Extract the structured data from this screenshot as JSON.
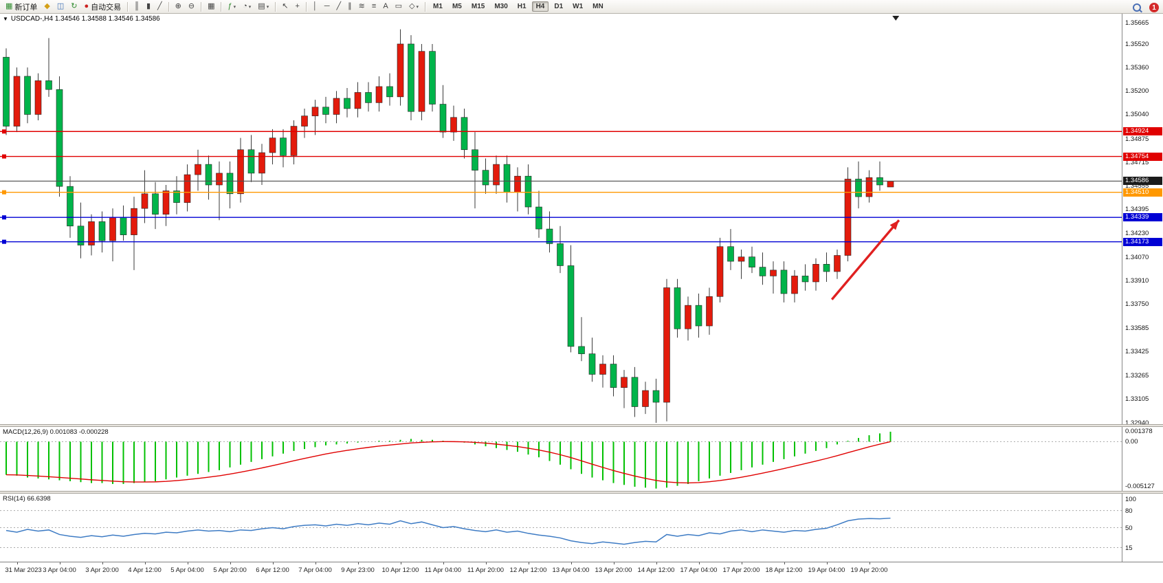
{
  "icons": {
    "caret_down": "▼",
    "dropdown_caret": "▾"
  },
  "toolbar": {
    "new_order_label": "新订单",
    "auto_trading_label": "自动交易",
    "items": [
      {
        "name": "new-order-button",
        "glyph": "▦",
        "color": "#2e8b2e",
        "label": "新订单"
      },
      {
        "name": "mql5-market-button",
        "glyph": "◆",
        "color": "#d4a017"
      },
      {
        "name": "market-watch-button",
        "glyph": "◫",
        "color": "#3a6db5"
      },
      {
        "name": "refresh-button",
        "glyph": "↻",
        "color": "#2e8b2e"
      },
      {
        "name": "auto-trading-button",
        "glyph": "●",
        "color": "#cc2222",
        "label": "自动交易"
      },
      {
        "sep": true
      },
      {
        "name": "bar-chart-button",
        "glyph": "║"
      },
      {
        "name": "candlestick-chart-button",
        "glyph": "▮"
      },
      {
        "name": "line-chart-button",
        "glyph": "╱"
      },
      {
        "sep": true
      },
      {
        "name": "zoom-in-button",
        "glyph": "⊕"
      },
      {
        "name": "zoom-out-button",
        "glyph": "⊖"
      },
      {
        "sep": true
      },
      {
        "name": "tile-windows-button",
        "glyph": "▦"
      },
      {
        "sep": true
      },
      {
        "name": "indicators-button",
        "glyph": "ƒ",
        "color": "#2e8b2e",
        "caret": true
      },
      {
        "name": "periods-button",
        "glyph": "◔",
        "caret": true
      },
      {
        "name": "templates-button",
        "glyph": "▤",
        "caret": true
      },
      {
        "sep": true
      },
      {
        "name": "cursor-button",
        "glyph": "↖"
      },
      {
        "name": "crosshair-button",
        "glyph": "+"
      },
      {
        "sep": true
      },
      {
        "name": "vertical-line-button",
        "glyph": "│"
      },
      {
        "name": "horizontal-line-button",
        "glyph": "─"
      },
      {
        "name": "trendline-button",
        "glyph": "╱"
      },
      {
        "name": "equidistant-channel-button",
        "glyph": "∥"
      },
      {
        "name": "fibonacci-button",
        "glyph": "≋"
      },
      {
        "name": "grid-button",
        "glyph": "≡"
      },
      {
        "name": "text-button",
        "glyph": "A"
      },
      {
        "name": "text-label-button",
        "glyph": "▭"
      },
      {
        "name": "shapes-button",
        "glyph": "◇",
        "caret": true
      },
      {
        "sep": true
      }
    ],
    "timeframes": [
      "M1",
      "M5",
      "M15",
      "M30",
      "H1",
      "H4",
      "D1",
      "W1",
      "MN"
    ],
    "active_timeframe": "H4",
    "notification_count": "1"
  },
  "symbol_info": "USDCAD-,H4 1.34546 1.34588 1.34546 1.34586",
  "chart_data": {
    "type": "candlestick",
    "symbol": "USDCAD-",
    "timeframe": "H4",
    "ohlc_display": {
      "open": "1.34546",
      "high": "1.34588",
      "low": "1.34546",
      "close": "1.34586"
    },
    "y_axis": {
      "top": 1.35665,
      "bottom": 1.3294
    },
    "y_ticks": [
      "1.35665",
      "1.35520",
      "1.35360",
      "1.35200",
      "1.35040",
      "1.34875",
      "1.34715",
      "1.34555",
      "1.34395",
      "1.34230",
      "1.34070",
      "1.33910",
      "1.33750",
      "1.33585",
      "1.33425",
      "1.33265",
      "1.33105",
      "1.32940"
    ],
    "hlines": [
      {
        "price": 1.34924,
        "label": "1.34924",
        "color": "#e00000"
      },
      {
        "price": 1.34754,
        "label": "1.34754",
        "color": "#e00000"
      },
      {
        "price": 1.3451,
        "label": "1.34510",
        "color": "#ff9800"
      },
      {
        "price": 1.34339,
        "label": "1.34339",
        "color": "#0000d4"
      },
      {
        "price": 1.34173,
        "label": "1.34173",
        "color": "#0000d4"
      }
    ],
    "current": {
      "price": 1.34586,
      "label": "1.34586"
    },
    "candles": [
      [
        1.3543,
        1.3549,
        1.349,
        1.3496
      ],
      [
        1.3496,
        1.3536,
        1.3492,
        1.353
      ],
      [
        1.353,
        1.3536,
        1.3498,
        1.3504
      ],
      [
        1.3504,
        1.3532,
        1.35,
        1.3527
      ],
      [
        1.3527,
        1.3556,
        1.3516,
        1.3521
      ],
      [
        1.3521,
        1.353,
        1.3448,
        1.3455
      ],
      [
        1.3455,
        1.3462,
        1.342,
        1.3428
      ],
      [
        1.3428,
        1.3444,
        1.3406,
        1.3415
      ],
      [
        1.3415,
        1.3436,
        1.3408,
        1.3431
      ],
      [
        1.3431,
        1.3438,
        1.341,
        1.3418
      ],
      [
        1.3418,
        1.344,
        1.3404,
        1.3434
      ],
      [
        1.3434,
        1.3442,
        1.3418,
        1.3422
      ],
      [
        1.3422,
        1.3448,
        1.3398,
        1.344
      ],
      [
        1.344,
        1.3466,
        1.343,
        1.345
      ],
      [
        1.345,
        1.3458,
        1.3426,
        1.3436
      ],
      [
        1.3436,
        1.3456,
        1.3428,
        1.3452
      ],
      [
        1.3452,
        1.3462,
        1.3436,
        1.3444
      ],
      [
        1.3444,
        1.347,
        1.3438,
        1.3463
      ],
      [
        1.3463,
        1.348,
        1.3452,
        1.347
      ],
      [
        1.347,
        1.3476,
        1.3446,
        1.3456
      ],
      [
        1.3456,
        1.3472,
        1.3432,
        1.3464
      ],
      [
        1.3464,
        1.3472,
        1.344,
        1.345
      ],
      [
        1.345,
        1.3488,
        1.3444,
        1.348
      ],
      [
        1.348,
        1.349,
        1.3458,
        1.3464
      ],
      [
        1.3464,
        1.3484,
        1.3456,
        1.3478
      ],
      [
        1.3478,
        1.3494,
        1.347,
        1.3488
      ],
      [
        1.3488,
        1.3494,
        1.3468,
        1.3476
      ],
      [
        1.3476,
        1.35,
        1.347,
        1.3496
      ],
      [
        1.3496,
        1.3508,
        1.3488,
        1.3503
      ],
      [
        1.3503,
        1.3514,
        1.349,
        1.3509
      ],
      [
        1.3509,
        1.3516,
        1.3498,
        1.3504
      ],
      [
        1.3504,
        1.352,
        1.3498,
        1.3515
      ],
      [
        1.3515,
        1.3522,
        1.3502,
        1.3508
      ],
      [
        1.3508,
        1.3526,
        1.3502,
        1.3519
      ],
      [
        1.3519,
        1.3526,
        1.3506,
        1.3512
      ],
      [
        1.3512,
        1.353,
        1.3506,
        1.3523
      ],
      [
        1.3523,
        1.3532,
        1.351,
        1.3516
      ],
      [
        1.3516,
        1.3562,
        1.351,
        1.3552
      ],
      [
        1.3552,
        1.3558,
        1.35,
        1.3506
      ],
      [
        1.3506,
        1.3552,
        1.35,
        1.3547
      ],
      [
        1.3547,
        1.3552,
        1.3506,
        1.3511
      ],
      [
        1.3511,
        1.3524,
        1.3488,
        1.3492
      ],
      [
        1.3492,
        1.351,
        1.3486,
        1.3502
      ],
      [
        1.3502,
        1.3508,
        1.3474,
        1.348
      ],
      [
        1.348,
        1.3492,
        1.344,
        1.3466
      ],
      [
        1.3466,
        1.3474,
        1.345,
        1.3456
      ],
      [
        1.3456,
        1.3476,
        1.345,
        1.347
      ],
      [
        1.347,
        1.3476,
        1.3444,
        1.3451
      ],
      [
        1.3451,
        1.3468,
        1.3438,
        1.3462
      ],
      [
        1.3462,
        1.347,
        1.3436,
        1.3441
      ],
      [
        1.3441,
        1.3452,
        1.342,
        1.3426
      ],
      [
        1.3426,
        1.3438,
        1.341,
        1.3416
      ],
      [
        1.3416,
        1.3428,
        1.3396,
        1.3401
      ],
      [
        1.3401,
        1.3415,
        1.3342,
        1.3346
      ],
      [
        1.3346,
        1.3366,
        1.3336,
        1.3341
      ],
      [
        1.3341,
        1.3352,
        1.3322,
        1.3327
      ],
      [
        1.3327,
        1.334,
        1.3318,
        1.3334
      ],
      [
        1.3334,
        1.334,
        1.3312,
        1.3318
      ],
      [
        1.3318,
        1.333,
        1.3304,
        1.3325
      ],
      [
        1.3325,
        1.3332,
        1.3298,
        1.3305
      ],
      [
        1.3305,
        1.3322,
        1.33,
        1.3316
      ],
      [
        1.3316,
        1.3324,
        1.3294,
        1.3308
      ],
      [
        1.3308,
        1.3392,
        1.3295,
        1.3386
      ],
      [
        1.3386,
        1.3392,
        1.3352,
        1.3358
      ],
      [
        1.3358,
        1.338,
        1.335,
        1.3374
      ],
      [
        1.3374,
        1.3382,
        1.3352,
        1.336
      ],
      [
        1.336,
        1.3386,
        1.3354,
        1.338
      ],
      [
        1.338,
        1.342,
        1.3376,
        1.3414
      ],
      [
        1.3414,
        1.3426,
        1.3398,
        1.3404
      ],
      [
        1.3404,
        1.3412,
        1.3392,
        1.3407
      ],
      [
        1.3407,
        1.3414,
        1.3396,
        1.34
      ],
      [
        1.34,
        1.341,
        1.3388,
        1.3394
      ],
      [
        1.3394,
        1.3404,
        1.3382,
        1.3398
      ],
      [
        1.3398,
        1.3404,
        1.3376,
        1.3382
      ],
      [
        1.3382,
        1.3398,
        1.3376,
        1.3394
      ],
      [
        1.3394,
        1.3402,
        1.3384,
        1.339
      ],
      [
        1.339,
        1.3406,
        1.3384,
        1.3402
      ],
      [
        1.3402,
        1.341,
        1.339,
        1.3397
      ],
      [
        1.3397,
        1.3412,
        1.3392,
        1.3408
      ],
      [
        1.3408,
        1.3468,
        1.3404,
        1.346
      ],
      [
        1.346,
        1.3472,
        1.344,
        1.3448
      ],
      [
        1.3448,
        1.3466,
        1.3444,
        1.3461
      ],
      [
        1.3461,
        1.3472,
        1.3452,
        1.3456
      ],
      [
        1.34546,
        1.34588,
        1.34546,
        1.34586
      ]
    ],
    "x_labels": [
      {
        "index": 1,
        "text": "31 Mar 2023"
      },
      {
        "index": 5,
        "text": "3 Apr 04:00"
      },
      {
        "index": 9,
        "text": "3 Apr 20:00"
      },
      {
        "index": 13,
        "text": "4 Apr 12:00"
      },
      {
        "index": 17,
        "text": "5 Apr 04:00"
      },
      {
        "index": 21,
        "text": "5 Apr 20:00"
      },
      {
        "index": 25,
        "text": "6 Apr 12:00"
      },
      {
        "index": 29,
        "text": "7 Apr 04:00"
      },
      {
        "index": 33,
        "text": "9 Apr 23:00"
      },
      {
        "index": 37,
        "text": "10 Apr 12:00"
      },
      {
        "index": 41,
        "text": "11 Apr 04:00"
      },
      {
        "index": 45,
        "text": "11 Apr 20:00"
      },
      {
        "index": 49,
        "text": "12 Apr 12:00"
      },
      {
        "index": 53,
        "text": "13 Apr 04:00"
      },
      {
        "index": 57,
        "text": "13 Apr 20:00"
      },
      {
        "index": 61,
        "text": "14 Apr 12:00"
      },
      {
        "index": 65,
        "text": "17 Apr 04:00"
      },
      {
        "index": 69,
        "text": "17 Apr 20:00"
      },
      {
        "index": 73,
        "text": "18 Apr 12:00"
      },
      {
        "index": 77,
        "text": "19 Apr 04:00"
      },
      {
        "index": 81,
        "text": "19 Apr 20:00"
      }
    ],
    "arrow": {
      "from_index": 77.5,
      "from_price": 1.3378,
      "to_index": 83.8,
      "to_price": 1.3432
    },
    "shift_marker_index": 83.5,
    "macd": {
      "label": "MACD(12,26,9) 0.001083 -0.000228",
      "scale_top_label": "0.001378",
      "zero_label": "0.00",
      "scale_bottom_label": "-0.005127",
      "scale_max": 0.001378,
      "scale_min": -0.005127,
      "values": [
        -0.0036,
        -0.0037,
        -0.0039,
        -0.004,
        -0.0041,
        -0.0042,
        -0.0043,
        -0.0044,
        -0.0045,
        -0.0045,
        -0.0046,
        -0.0046,
        -0.0045,
        -0.0044,
        -0.0043,
        -0.0041,
        -0.0039,
        -0.0037,
        -0.0035,
        -0.0033,
        -0.0031,
        -0.0028,
        -0.0025,
        -0.0022,
        -0.0019,
        -0.0016,
        -0.0013,
        -0.001,
        -0.0008,
        -0.0006,
        -0.0004,
        -0.0003,
        -0.0002,
        -0.0001,
        0.0,
        0.0001,
        0.0001,
        0.0002,
        0.0003,
        0.0002,
        0.0002,
        0.0001,
        0.0,
        -0.0001,
        -0.0003,
        -0.0005,
        -0.0007,
        -0.0009,
        -0.0011,
        -0.0014,
        -0.0017,
        -0.0021,
        -0.0025,
        -0.003,
        -0.0035,
        -0.0039,
        -0.0042,
        -0.0045,
        -0.0047,
        -0.0049,
        -0.005,
        -0.0051,
        -0.005,
        -0.0048,
        -0.0046,
        -0.0043,
        -0.004,
        -0.0037,
        -0.0034,
        -0.0031,
        -0.0028,
        -0.0025,
        -0.0022,
        -0.0019,
        -0.0016,
        -0.0013,
        -0.001,
        -0.0007,
        -0.0003,
        0.0001,
        0.0004,
        0.0007,
        0.0009,
        0.001083
      ]
    },
    "rsi": {
      "label": "RSI(14) 66.6398",
      "levels": [
        {
          "value": 100,
          "label": "100",
          "line": false
        },
        {
          "value": 80,
          "label": "80",
          "line": true
        },
        {
          "value": 50,
          "label": "50",
          "line": true
        },
        {
          "value": 15,
          "label": "15",
          "line": true
        }
      ],
      "values": [
        45,
        42,
        47,
        44,
        46,
        38,
        35,
        33,
        36,
        34,
        37,
        35,
        38,
        40,
        39,
        42,
        41,
        44,
        46,
        44,
        45,
        43,
        46,
        45,
        48,
        50,
        48,
        52,
        54,
        55,
        53,
        56,
        54,
        57,
        55,
        58,
        56,
        62,
        57,
        60,
        55,
        50,
        52,
        48,
        45,
        43,
        46,
        42,
        44,
        40,
        37,
        35,
        32,
        27,
        24,
        22,
        25,
        23,
        21,
        24,
        26,
        25,
        38,
        35,
        38,
        36,
        41,
        39,
        44,
        46,
        43,
        46,
        44,
        42,
        45,
        44,
        47,
        49,
        55,
        62,
        65,
        66,
        65.5,
        66.64
      ]
    },
    "colors": {
      "bull": "#e31b0c",
      "bear": "#00b44a",
      "wick": "#3a3a3a",
      "candle_outline": "#222222",
      "macd_hist": "#00c000",
      "macd_signal": "#e00000",
      "rsi_line": "#3d7bc4",
      "arrow": "#e02020",
      "current_line": "#4d4d4d",
      "current_tag_bg": "#1b1b1b",
      "level_dash": "#a8a8a8",
      "background": "#ffffff"
    }
  }
}
